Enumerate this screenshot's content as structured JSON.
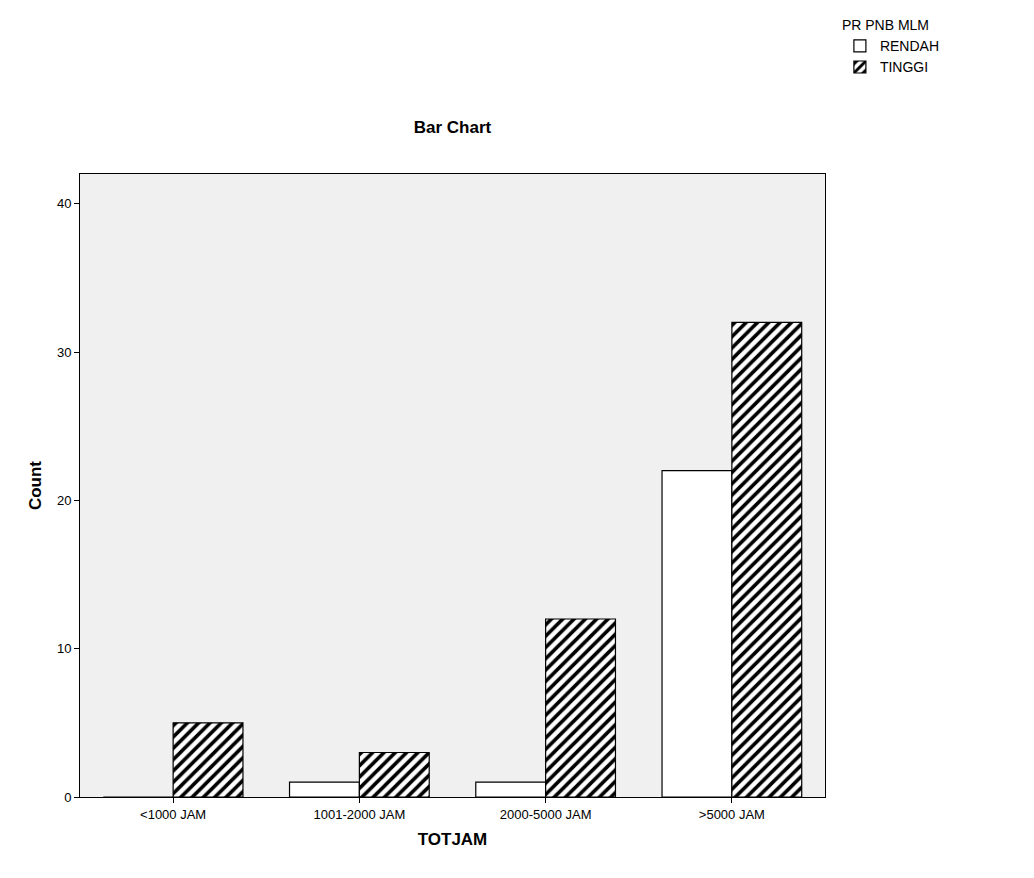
{
  "chart_data": {
    "type": "bar",
    "title": "Bar Chart",
    "x_label": "TOTJAM",
    "y_label": "Count",
    "categories": [
      "<1000 JAM",
      "1001-2000 JAM",
      "2000-5000 JAM",
      ">5000 JAM"
    ],
    "legend_title": "PR PNB MLM",
    "series": [
      {
        "name": "RENDAH",
        "color": "#ffffff",
        "marker": "plain",
        "values": [
          0,
          1,
          1,
          22
        ]
      },
      {
        "name": "TINGGI",
        "color": "#ffffff",
        "marker": "hatched",
        "values": [
          5,
          3,
          12,
          32
        ]
      }
    ],
    "ylim": [
      0,
      42
    ],
    "yticks": [
      0,
      10,
      20,
      30,
      40
    ],
    "grid": false,
    "legend": "top right"
  }
}
